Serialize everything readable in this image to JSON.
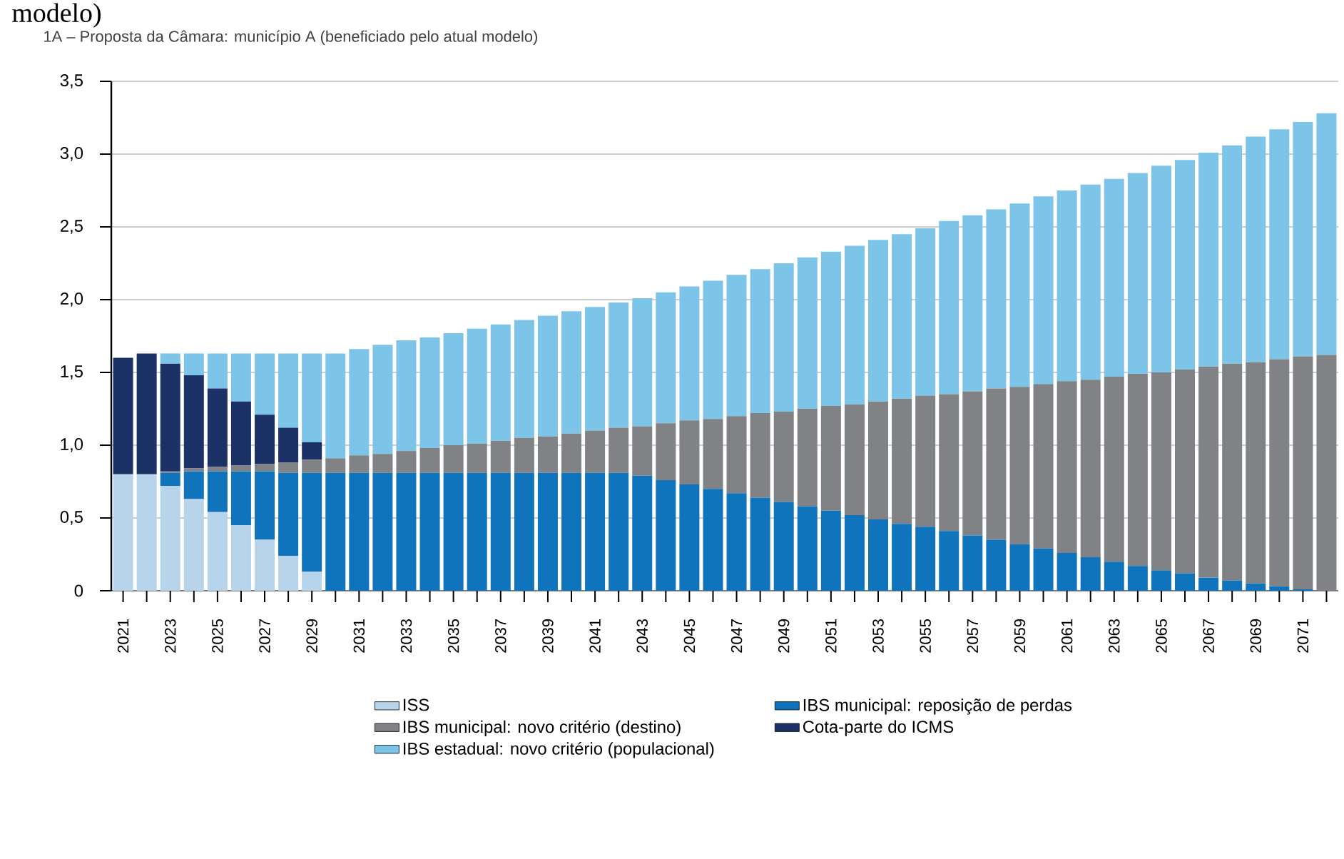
{
  "chart_data": {
    "type": "bar",
    "title": "1A – Proposta da Câmara: município A (beneficiado pelo atual modelo)",
    "annotations": [
      "modelo)"
    ],
    "categories": [
      "2021",
      null,
      "2023",
      null,
      "2025",
      null,
      "2027",
      null,
      "2029",
      null,
      "2031",
      null,
      "2033",
      null,
      "2035",
      null,
      "2037",
      null,
      "2039",
      null,
      "2041",
      null,
      "2043",
      null,
      "2045",
      null,
      "2047",
      null,
      "2049",
      null,
      "2051",
      null,
      "2053",
      null,
      "2055",
      null,
      "2057",
      null,
      "2059",
      null,
      "2061",
      null,
      "2063",
      null,
      "2065",
      null,
      "2067",
      null,
      "2069",
      null,
      "2071",
      null
    ],
    "stacked": true,
    "series": [
      {
        "name": "ISS",
        "color": "#b8d4ea",
        "values": [
          0.8,
          0.8,
          0.72,
          0.63,
          0.54,
          0.45,
          0.35,
          0.24,
          0.13,
          0,
          0,
          0,
          0,
          0,
          0,
          0,
          0,
          0,
          0,
          0,
          0,
          0,
          0,
          0,
          0,
          0,
          0,
          0,
          0,
          0,
          0,
          0,
          0,
          0,
          0,
          0,
          0,
          0,
          0,
          0,
          0,
          0,
          0,
          0,
          0,
          0,
          0,
          0,
          0,
          0,
          0,
          0
        ]
      },
      {
        "name": "IBS municipal: reposição de perdas",
        "color": "#0f74bb",
        "values": [
          0,
          0,
          0.09,
          0.19,
          0.28,
          0.37,
          0.47,
          0.57,
          0.68,
          0.81,
          0.81,
          0.81,
          0.81,
          0.81,
          0.81,
          0.81,
          0.81,
          0.81,
          0.81,
          0.81,
          0.81,
          0.81,
          0.79,
          0.76,
          0.73,
          0.7,
          0.67,
          0.64,
          0.61,
          0.58,
          0.55,
          0.52,
          0.49,
          0.46,
          0.44,
          0.41,
          0.38,
          0.35,
          0.32,
          0.29,
          0.26,
          0.23,
          0.2,
          0.17,
          0.14,
          0.12,
          0.09,
          0.07,
          0.05,
          0.03,
          0.01,
          0
        ]
      },
      {
        "name": "IBS municipal: novo critério (destino)",
        "color": "#808285",
        "values": [
          0,
          0,
          0.01,
          0.02,
          0.03,
          0.04,
          0.05,
          0.07,
          0.09,
          0.1,
          0.12,
          0.13,
          0.15,
          0.17,
          0.19,
          0.2,
          0.22,
          0.24,
          0.25,
          0.27,
          0.29,
          0.31,
          0.34,
          0.39,
          0.44,
          0.48,
          0.53,
          0.58,
          0.62,
          0.67,
          0.72,
          0.76,
          0.81,
          0.86,
          0.9,
          0.94,
          0.99,
          1.04,
          1.08,
          1.13,
          1.18,
          1.22,
          1.27,
          1.32,
          1.36,
          1.4,
          1.45,
          1.49,
          1.52,
          1.56,
          1.6,
          1.62
        ]
      },
      {
        "name": "Cota-parte do ICMS",
        "color": "#1c3166",
        "values": [
          0.8,
          0.83,
          0.74,
          0.64,
          0.54,
          0.44,
          0.34,
          0.24,
          0.12,
          0,
          0,
          0,
          0,
          0,
          0,
          0,
          0,
          0,
          0,
          0,
          0,
          0,
          0,
          0,
          0,
          0,
          0,
          0,
          0,
          0,
          0,
          0,
          0,
          0,
          0,
          0,
          0,
          0,
          0,
          0,
          0,
          0,
          0,
          0,
          0,
          0,
          0,
          0,
          0,
          0,
          0,
          0
        ]
      },
      {
        "name": "IBS estadual: novo critério (populacional)",
        "color": "#7cc4e8",
        "values": [
          0,
          0,
          0.07,
          0.15,
          0.24,
          0.33,
          0.42,
          0.51,
          0.61,
          0.72,
          0.73,
          0.75,
          0.76,
          0.76,
          0.77,
          0.79,
          0.8,
          0.81,
          0.83,
          0.84,
          0.85,
          0.86,
          0.88,
          0.9,
          0.92,
          0.95,
          0.97,
          0.99,
          1.02,
          1.04,
          1.06,
          1.09,
          1.11,
          1.13,
          1.15,
          1.19,
          1.21,
          1.23,
          1.26,
          1.29,
          1.31,
          1.34,
          1.36,
          1.38,
          1.42,
          1.44,
          1.47,
          1.5,
          1.55,
          1.58,
          1.61,
          1.66
        ]
      }
    ],
    "ylim": [
      0,
      3.5
    ],
    "yticks": [
      0,
      {
        "value": 0.5,
        "label": "0,5"
      },
      {
        "value": 1.0,
        "label": "1,0"
      },
      {
        "value": 1.5,
        "label": "1,5"
      },
      {
        "value": 2.0,
        "label": "2,0"
      },
      {
        "value": 2.5,
        "label": "2,5"
      },
      {
        "value": 3.0,
        "label": "3,0"
      },
      {
        "value": 3.5,
        "label": "3,5"
      }
    ],
    "grid": "y",
    "legend": "bottom"
  }
}
